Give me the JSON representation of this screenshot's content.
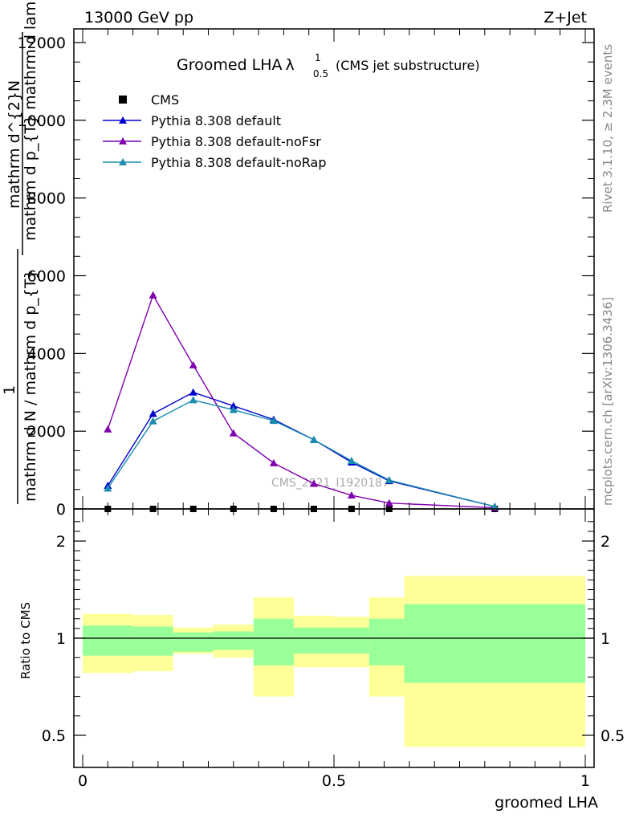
{
  "header": {
    "energy_label": "13000 GeV pp",
    "process_label": "Z+Jet"
  },
  "side_text": {
    "rivet": "Rivet 3.1.10, ≥ 2.3M events",
    "mcplots": "mcplots.cern.ch [arXiv:1306.3436]"
  },
  "watermark": "CMS_2021_I1920187",
  "chart_data": [
    {
      "type": "line",
      "title": "Groomed LHA",
      "title_lambda": "λ",
      "title_sup": "1",
      "title_sub": "0.5",
      "subtitle": "(CMS jet substructure)",
      "ylabel_numerator": "mathrm d^{2}N",
      "ylabel_numerator2": "mathrm d p_{T} mathrm d lambda",
      "ylabel_frac_one": "1",
      "ylabel_denominator": "mathrm d N / mathrm d p_{T}",
      "ylim": [
        0,
        12500
      ],
      "yticks": [
        0,
        2000,
        4000,
        6000,
        8000,
        10000,
        12000
      ],
      "ytick_labels": [
        "0",
        "2000",
        "4000",
        "6000",
        "8000",
        "10000",
        "12000"
      ],
      "xlim": [
        0,
        1
      ],
      "grid": false,
      "legend_position": "top-left",
      "series": [
        {
          "name": "CMS",
          "color": "#000000",
          "marker": "square",
          "x": [
            0.05,
            0.14,
            0.22,
            0.3,
            0.38,
            0.46,
            0.535,
            0.61,
            0.82
          ],
          "values": [
            0,
            0,
            0,
            0,
            0,
            0,
            0,
            0,
            0
          ]
        },
        {
          "name": "Pythia 8.308 default",
          "color": "#0000cc",
          "marker": "triangle",
          "x": [
            0.05,
            0.14,
            0.22,
            0.3,
            0.38,
            0.46,
            0.535,
            0.61,
            0.82
          ],
          "values": [
            600,
            2450,
            3000,
            2650,
            2300,
            1780,
            1200,
            720,
            60
          ]
        },
        {
          "name": "Pythia 8.308 default-noFsr",
          "color": "#8000b0",
          "marker": "triangle",
          "x": [
            0.05,
            0.14,
            0.22,
            0.3,
            0.38,
            0.46,
            0.535,
            0.61,
            0.82
          ],
          "values": [
            2050,
            5500,
            3700,
            1950,
            1180,
            650,
            350,
            150,
            30
          ]
        },
        {
          "name": "Pythia 8.308 default-noRap",
          "color": "#1a8caf",
          "marker": "triangle",
          "x": [
            0.05,
            0.14,
            0.22,
            0.3,
            0.38,
            0.46,
            0.535,
            0.61,
            0.82
          ],
          "values": [
            530,
            2260,
            2800,
            2550,
            2270,
            1780,
            1240,
            740,
            60
          ]
        }
      ]
    },
    {
      "type": "area",
      "ylabel": "Ratio to CMS",
      "xlabel": "groomed LHA",
      "ylim": [
        0.4,
        2.3
      ],
      "yticks": [
        0.5,
        1,
        2
      ],
      "ytick_labels": [
        "0.5",
        "1",
        "2"
      ],
      "xticks": [
        0,
        0.5,
        1
      ],
      "xtick_labels": [
        "0",
        "0.5",
        "1"
      ],
      "xlim": [
        0,
        1
      ],
      "reference_line": 1,
      "band_colors": {
        "outer": "#ffff99",
        "inner": "#99ff99"
      },
      "bins": [
        {
          "x0": 0.0,
          "x1": 0.1,
          "yellow_lo": 0.82,
          "yellow_hi": 1.25,
          "green_lo": 0.91,
          "green_hi": 1.13
        },
        {
          "x0": 0.1,
          "x1": 0.18,
          "yellow_lo": 0.83,
          "yellow_hi": 1.24,
          "green_lo": 0.91,
          "green_hi": 1.12
        },
        {
          "x0": 0.18,
          "x1": 0.26,
          "yellow_lo": 0.92,
          "yellow_hi": 1.11,
          "green_lo": 0.93,
          "green_hi": 1.06
        },
        {
          "x0": 0.26,
          "x1": 0.34,
          "yellow_lo": 0.9,
          "yellow_hi": 1.14,
          "green_lo": 0.94,
          "green_hi": 1.07
        },
        {
          "x0": 0.34,
          "x1": 0.42,
          "yellow_lo": 0.7,
          "yellow_hi": 1.42,
          "green_lo": 0.86,
          "green_hi": 1.2
        },
        {
          "x0": 0.42,
          "x1": 0.5,
          "yellow_lo": 0.85,
          "yellow_hi": 1.23,
          "green_lo": 0.92,
          "green_hi": 1.11
        },
        {
          "x0": 0.5,
          "x1": 0.57,
          "yellow_lo": 0.85,
          "yellow_hi": 1.22,
          "green_lo": 0.92,
          "green_hi": 1.11
        },
        {
          "x0": 0.57,
          "x1": 0.64,
          "yellow_lo": 0.7,
          "yellow_hi": 1.42,
          "green_lo": 0.86,
          "green_hi": 1.2
        },
        {
          "x0": 0.64,
          "x1": 1.0,
          "yellow_lo": 0.44,
          "yellow_hi": 1.64,
          "green_lo": 0.77,
          "green_hi": 1.35
        }
      ]
    }
  ]
}
